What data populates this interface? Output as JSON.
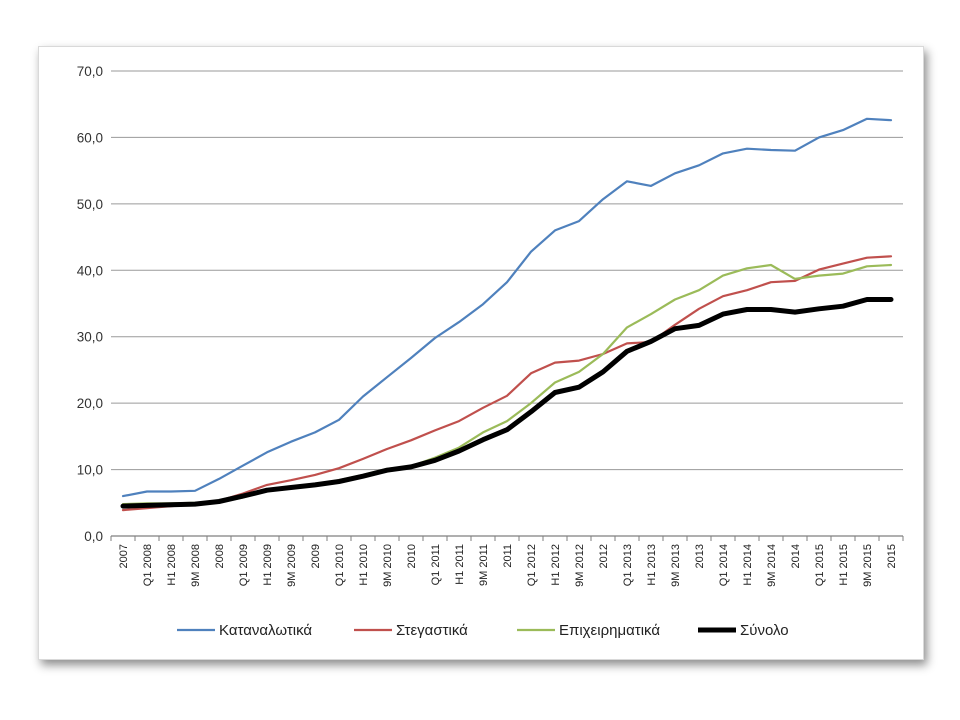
{
  "chart_data": {
    "type": "line",
    "title": "",
    "xlabel": "",
    "ylabel": "",
    "ylim": [
      0,
      70
    ],
    "yticks": [
      "0,0",
      "10,0",
      "20,0",
      "30,0",
      "40,0",
      "50,0",
      "60,0",
      "70,0"
    ],
    "grid": true,
    "legend_position": "bottom",
    "categories": [
      "2007",
      "Q1 2008",
      "H1 2008",
      "9M 2008",
      "2008",
      "Q1 2009",
      "H1 2009",
      "9M 2009",
      "2009",
      "Q1 2010",
      "H1 2010",
      "9M 2010",
      "2010",
      "Q1 2011",
      "H1 2011",
      "9M 2011",
      "2011",
      "Q1 2012",
      "H1 2012",
      "9M 2012",
      "2012",
      "Q1 2013",
      "H1 2013",
      "9M 2013",
      "2013",
      "Q1 2014",
      "H1 2014",
      "9M 2014",
      "2014",
      "Q1 2015",
      "H1 2015",
      "9M 2015",
      "2015"
    ],
    "series": [
      {
        "name": "Καταναλωτικά",
        "color": "#4f81bd",
        "width": 2.2,
        "values": [
          6.0,
          6.7,
          6.7,
          6.8,
          8.6,
          10.6,
          12.6,
          14.2,
          15.6,
          17.5,
          21.0,
          23.9,
          26.8,
          29.8,
          32.2,
          34.9,
          38.2,
          42.8,
          46.0,
          47.4,
          50.7,
          53.4,
          52.7,
          54.6,
          55.8,
          57.6,
          58.3,
          58.1,
          58.0,
          60.0,
          61.1,
          62.8,
          62.6
        ]
      },
      {
        "name": "Στεγαστικά",
        "color": "#c0504d",
        "width": 2.2,
        "values": [
          3.9,
          4.2,
          4.5,
          4.8,
          5.3,
          6.4,
          7.7,
          8.4,
          9.2,
          10.2,
          11.6,
          13.1,
          14.4,
          15.9,
          17.3,
          19.3,
          21.1,
          24.5,
          26.1,
          26.4,
          27.4,
          29.0,
          29.2,
          31.8,
          34.2,
          36.1,
          37.0,
          38.2,
          38.4,
          40.1,
          41.0,
          41.9,
          42.1
        ]
      },
      {
        "name": "Επιχειρηματικά",
        "color": "#9bbb59",
        "width": 2.2,
        "values": [
          4.8,
          4.9,
          4.9,
          5.0,
          5.1,
          5.8,
          6.9,
          7.3,
          7.8,
          8.4,
          9.2,
          10.1,
          10.5,
          11.8,
          13.3,
          15.6,
          17.3,
          20.0,
          23.1,
          24.7,
          27.4,
          31.4,
          33.4,
          35.6,
          37.0,
          39.2,
          40.3,
          40.8,
          38.7,
          39.2,
          39.5,
          40.6,
          40.8
        ]
      },
      {
        "name": "Σύνολο",
        "color": "#000000",
        "width": 5,
        "values": [
          4.5,
          4.6,
          4.7,
          4.8,
          5.2,
          6.0,
          6.9,
          7.3,
          7.7,
          8.2,
          9.0,
          9.9,
          10.4,
          11.4,
          12.8,
          14.5,
          16.0,
          18.7,
          21.6,
          22.4,
          24.7,
          27.8,
          29.3,
          31.2,
          31.7,
          33.4,
          34.1,
          34.1,
          33.7,
          34.2,
          34.6,
          35.6,
          35.6
        ]
      }
    ]
  }
}
